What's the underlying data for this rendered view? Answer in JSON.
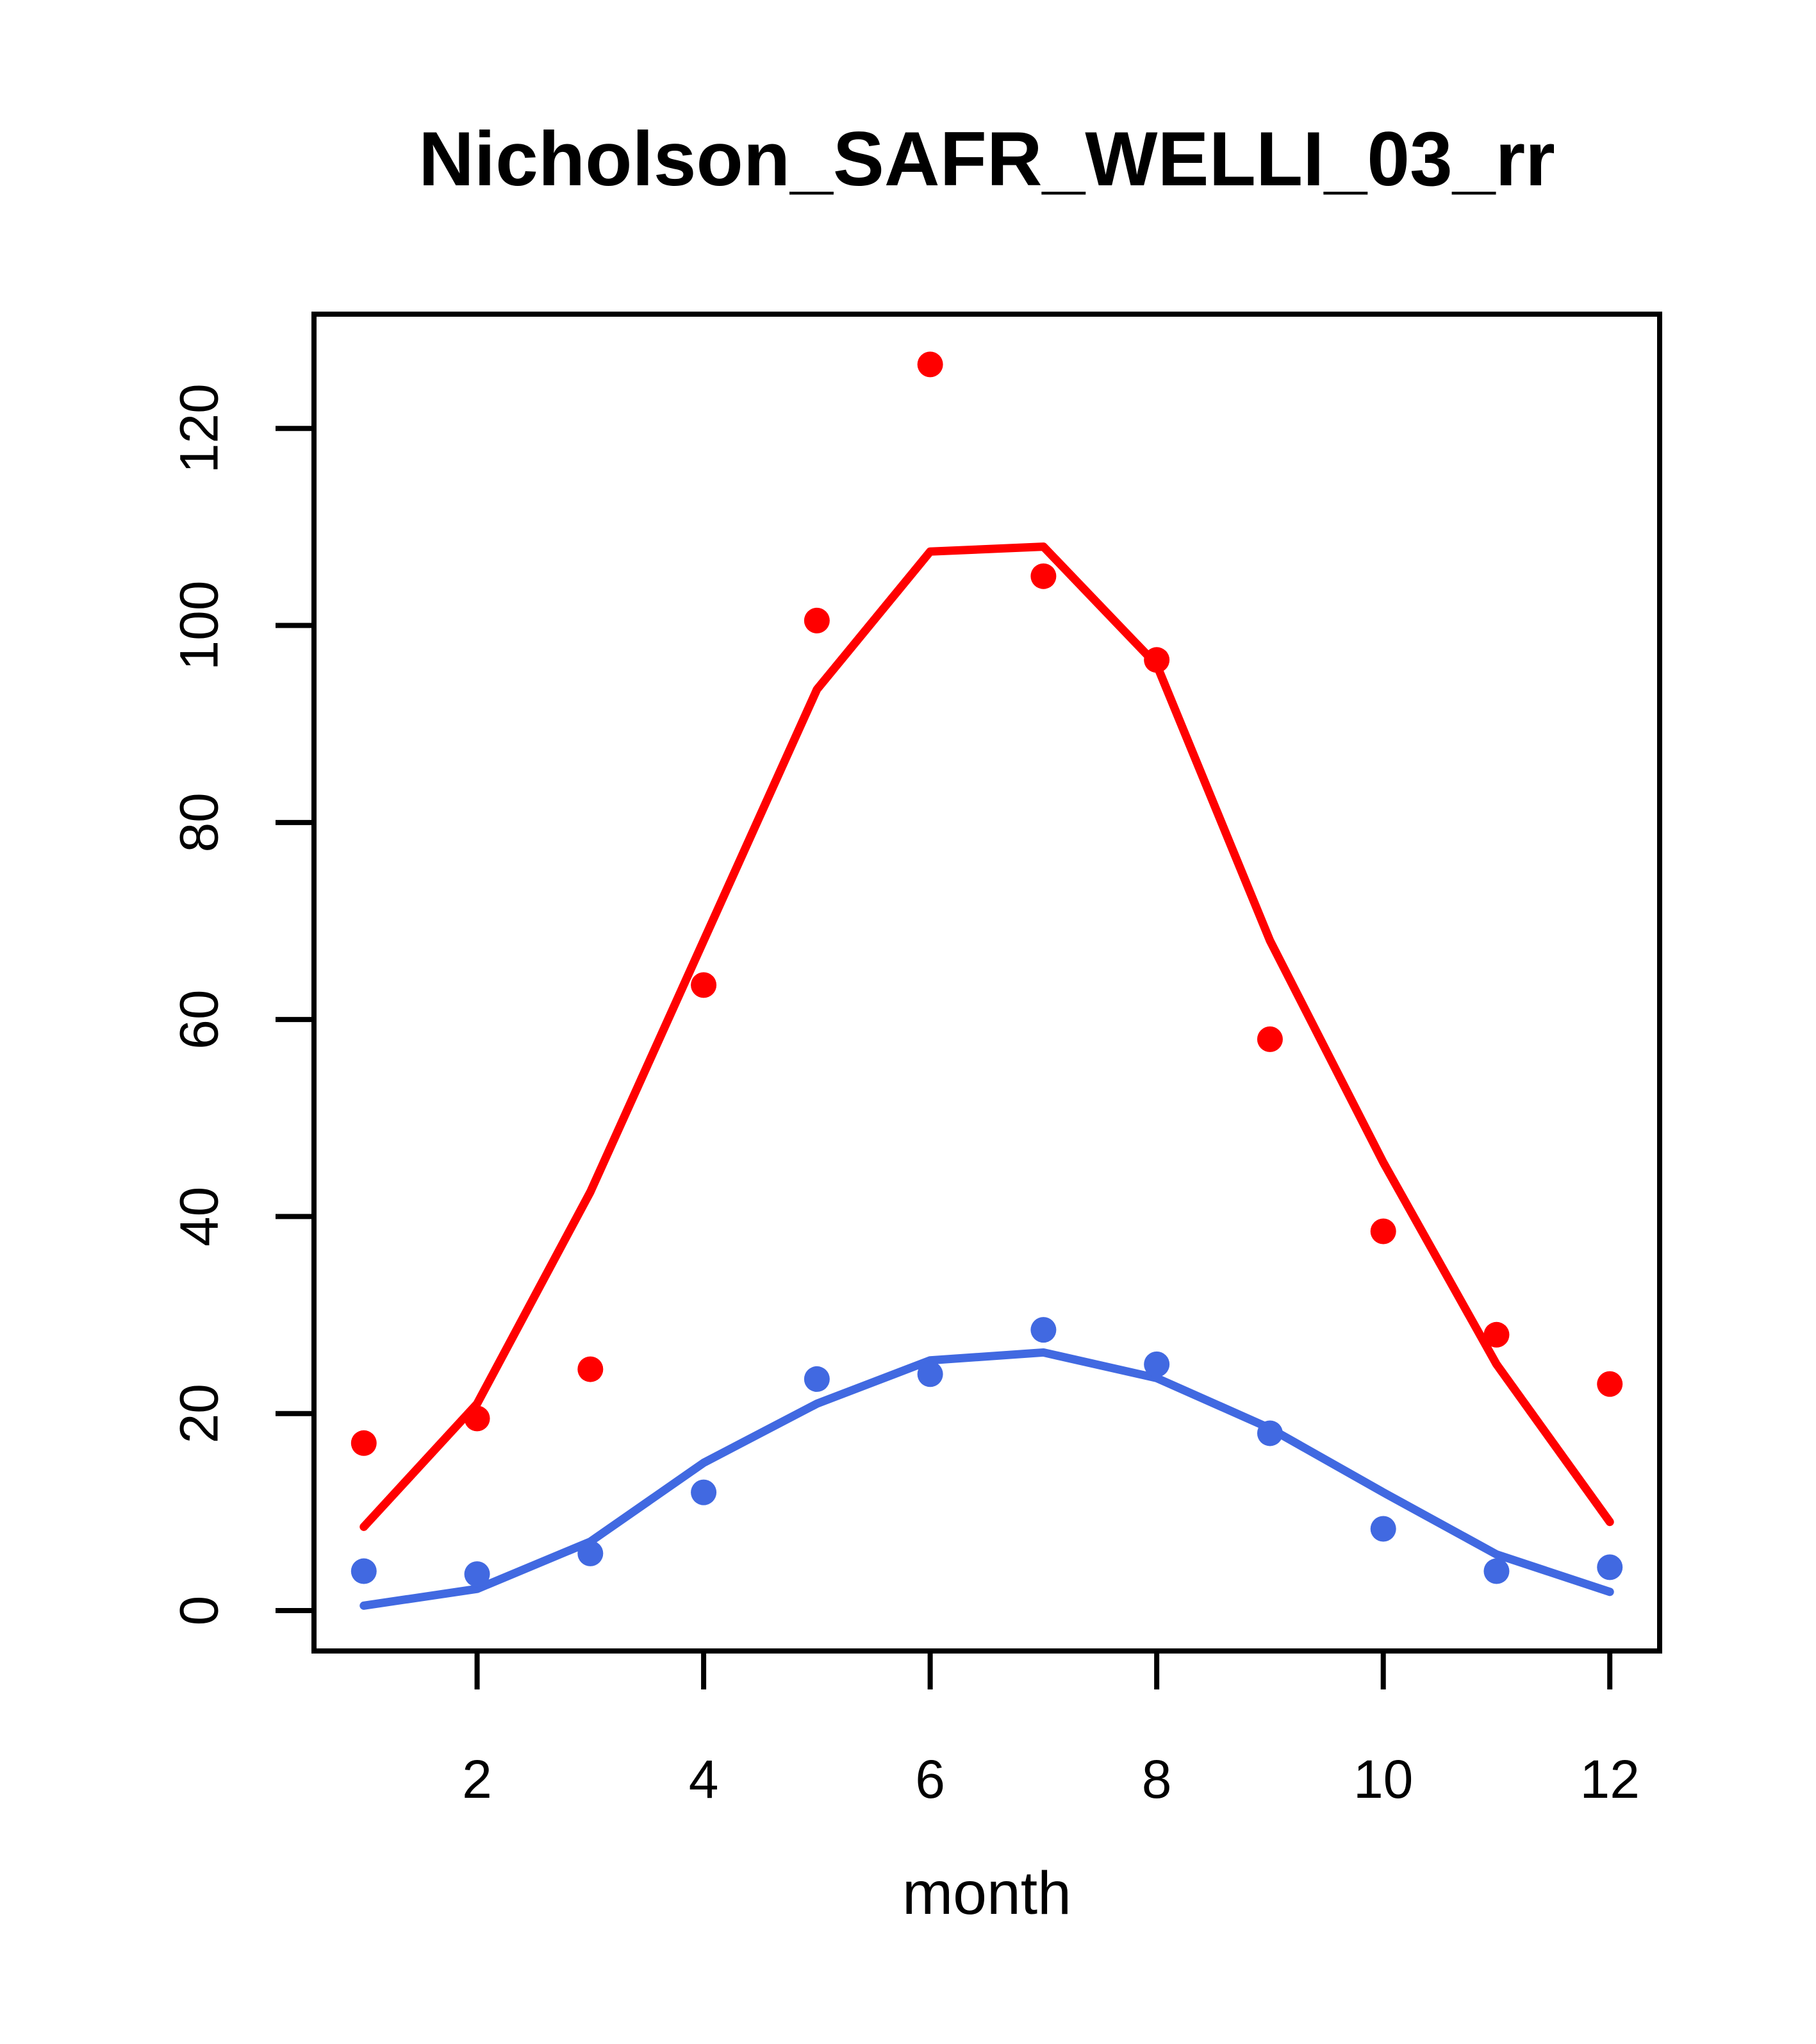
{
  "chart_data": {
    "type": "scatter",
    "title": "Nicholson_SAFR_WELLI_03_rr",
    "xlabel": "month",
    "ylabel": "",
    "x": [
      1,
      2,
      3,
      4,
      5,
      6,
      7,
      8,
      9,
      10,
      11,
      12
    ],
    "xlim": [
      0.56,
      12.44
    ],
    "ylim": [
      -4.1,
      131.6
    ],
    "x_ticks": [
      2,
      4,
      6,
      8,
      10,
      12
    ],
    "y_ticks": [
      0,
      20,
      40,
      60,
      80,
      100,
      120
    ],
    "grid": false,
    "legend": "none",
    "colors": {
      "observed_and_fit_1": "#FF0000",
      "observed_and_fit_2": "#4169E1",
      "axis": "#000000"
    },
    "series": [
      {
        "name": "red-observed-points",
        "style": "points",
        "color": "#FF0000",
        "marker_radius_px": 20,
        "values": [
          17,
          19.5,
          24.5,
          63.5,
          100.5,
          126.5,
          105,
          96.5,
          58,
          38.5,
          28,
          23
        ]
      },
      {
        "name": "red-fitted-line",
        "style": "line",
        "color": "#FF0000",
        "stroke_px": 13,
        "values": [
          8.5,
          21,
          42.5,
          68,
          93.5,
          107.5,
          108,
          96,
          68,
          45.5,
          25,
          9
        ]
      },
      {
        "name": "blue-observed-points",
        "style": "points",
        "color": "#4169E1",
        "marker_radius_px": 20,
        "values": [
          4,
          3.7,
          5.8,
          12,
          23.5,
          24,
          28.5,
          25,
          18,
          8.3,
          4,
          4.4
        ]
      },
      {
        "name": "blue-fitted-line",
        "style": "line",
        "color": "#4169E1",
        "stroke_px": 13,
        "values": [
          0.5,
          2.2,
          7,
          15,
          21,
          25.4,
          26.2,
          23.6,
          18.5,
          12,
          5.7,
          1.9
        ]
      }
    ]
  }
}
